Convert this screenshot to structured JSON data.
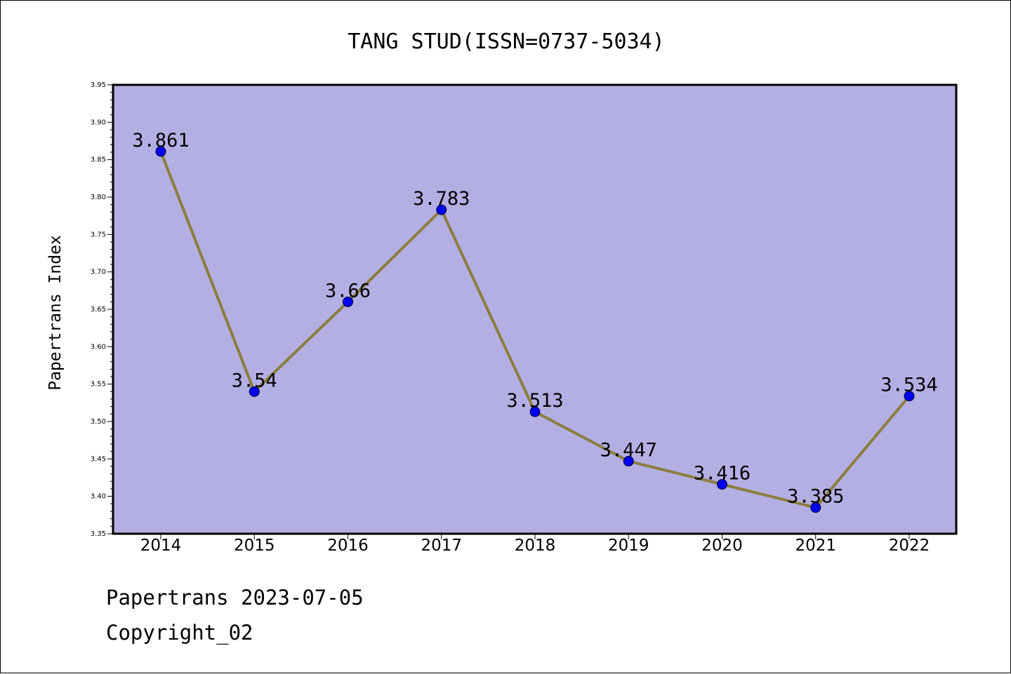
{
  "chart_data": {
    "type": "line",
    "title": "TANG STUD(ISSN=0737-5034)",
    "xlabel": "",
    "ylabel": "Papertrans Index",
    "categories": [
      "2014",
      "2015",
      "2016",
      "2017",
      "2018",
      "2019",
      "2020",
      "2021",
      "2022"
    ],
    "series": [
      {
        "values": [
          3.861,
          3.54,
          3.66,
          3.783,
          3.513,
          3.447,
          3.416,
          3.385,
          3.534
        ],
        "data_labels": [
          "3.861",
          "3.54",
          "3.66",
          "3.783",
          "3.513",
          "3.447",
          "3.416",
          "3.385",
          "3.534"
        ],
        "line_color": "#8b7d3e",
        "marker_color": "#0000ee"
      }
    ],
    "ylim": [
      3.35,
      3.95
    ],
    "y_ticks": [
      "3.35",
      "3.40",
      "3.45",
      "3.50",
      "3.55",
      "3.60",
      "3.65",
      "3.70",
      "3.75",
      "3.80",
      "3.85",
      "3.90",
      "3.95"
    ],
    "y_minor_step": 0.01,
    "grid": false,
    "legend": "none",
    "plot_background": "#b4afe3"
  },
  "footer": {
    "date_line": "Papertrans 2023-07-05",
    "copyright_line": "Copyright_02"
  }
}
